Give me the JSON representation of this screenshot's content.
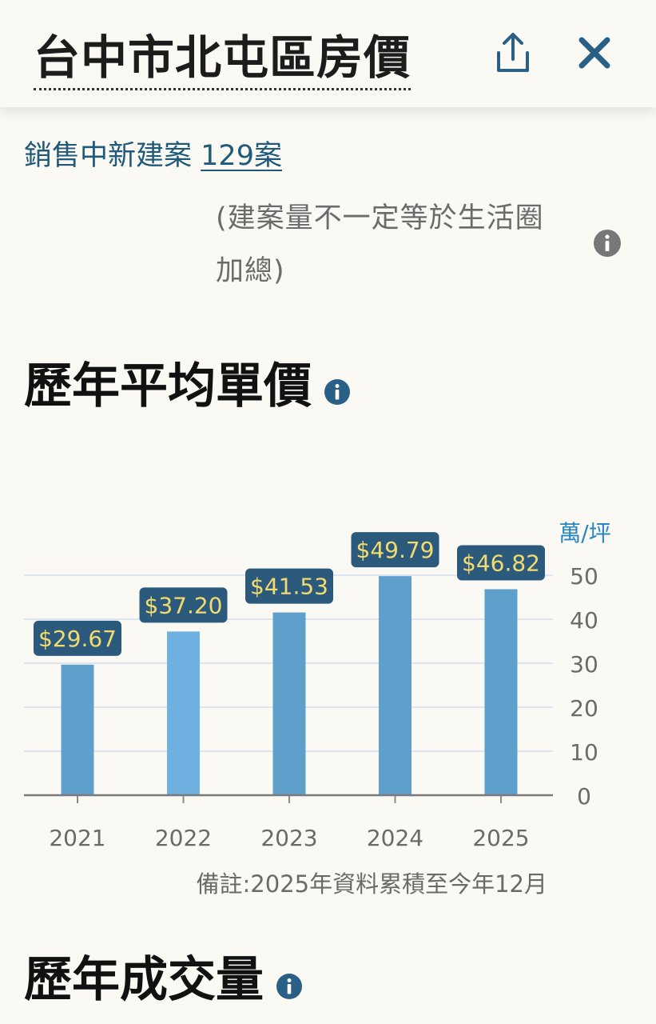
{
  "header": {
    "title": "台中市北屯區房價"
  },
  "sale": {
    "prefix": "銷售中新建案",
    "count": "129案"
  },
  "note": "(建案量不一定等於生活圈加總)",
  "section1": {
    "title": "歷年平均單價"
  },
  "section2": {
    "title": "歷年成交量"
  },
  "chart_data": {
    "type": "bar",
    "categories": [
      "2021",
      "2022",
      "2023",
      "2024",
      "2025"
    ],
    "values": [
      29.67,
      37.2,
      41.53,
      49.79,
      46.82
    ],
    "data_labels": [
      "$29.67",
      "$37.20",
      "$41.53",
      "$49.79",
      "$46.82"
    ],
    "unit": "萬/坪",
    "ylim": [
      0,
      50
    ],
    "yticks": [
      0,
      10,
      20,
      30,
      40,
      50
    ],
    "grid": true,
    "highlight_index": 1,
    "footnote": "備註:2025年資料累積至今年12月"
  },
  "colors": {
    "bar": "#5f9fcc",
    "bar_highlight": "#6fb1e1",
    "label_bg": "#2c5a7c",
    "label_text": "#f3dc6f",
    "accent": "#2a5f86",
    "unit_text": "#2a86bf",
    "grid": "#dde6f0"
  },
  "icons": {
    "share": "share-icon",
    "close": "close-icon",
    "info": "info-icon"
  }
}
